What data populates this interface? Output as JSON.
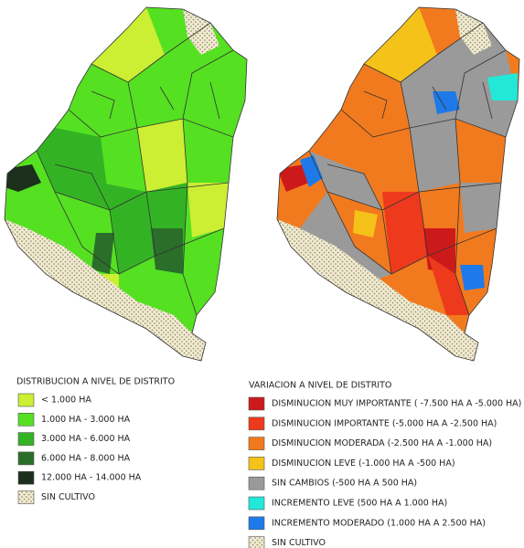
{
  "left_legend": {
    "title": "DISTRIBUCION A NIVEL DE DISTRITO",
    "items": [
      {
        "label": "< 1.000 HA",
        "color": "#ccee33"
      },
      {
        "label": "1.000 HA - 3.000 HA",
        "color": "#55e022"
      },
      {
        "label": "3.000 HA - 6.000 HA",
        "color": "#33b324"
      },
      {
        "label": "6.000 HA - 8.000 HA",
        "color": "#2a6e2a"
      },
      {
        "label": "12.000 HA - 14.000 HA",
        "color": "#1c2e1c"
      },
      {
        "label": "SIN CULTIVO",
        "color": "#f0ead0",
        "pattern": "dotted"
      }
    ]
  },
  "right_legend": {
    "title": "VARIACION A NIVEL DE DISTRITO",
    "items": [
      {
        "label": "DISMINUCION MUY IMPORTANTE ( -7.500 HA A -5.000 HA)",
        "color": "#cc1a1a"
      },
      {
        "label": "DISMINUCION IMPORTANTE (-5.000 HA A -2.500 HA)",
        "color": "#ee3a1c"
      },
      {
        "label": "DISMINUCION MODERADA (-2.500 HA A -1.000 HA)",
        "color": "#f27a1e"
      },
      {
        "label": "DISMINUCION LEVE (-1.000 HA A -500 HA)",
        "color": "#f5c21a"
      },
      {
        "label": "SIN CAMBIOS (-500 HA A 500 HA)",
        "color": "#9a9a9a"
      },
      {
        "label": "INCREMENTO LEVE (500 HA A 1.000 HA)",
        "color": "#22e8d8"
      },
      {
        "label": "INCREMENTO MODERADO (1.000 HA A 2.500 HA)",
        "color": "#1e7ae8"
      },
      {
        "label": "SIN CULTIVO",
        "color": "#f0ead0",
        "pattern": "dotted"
      }
    ]
  }
}
